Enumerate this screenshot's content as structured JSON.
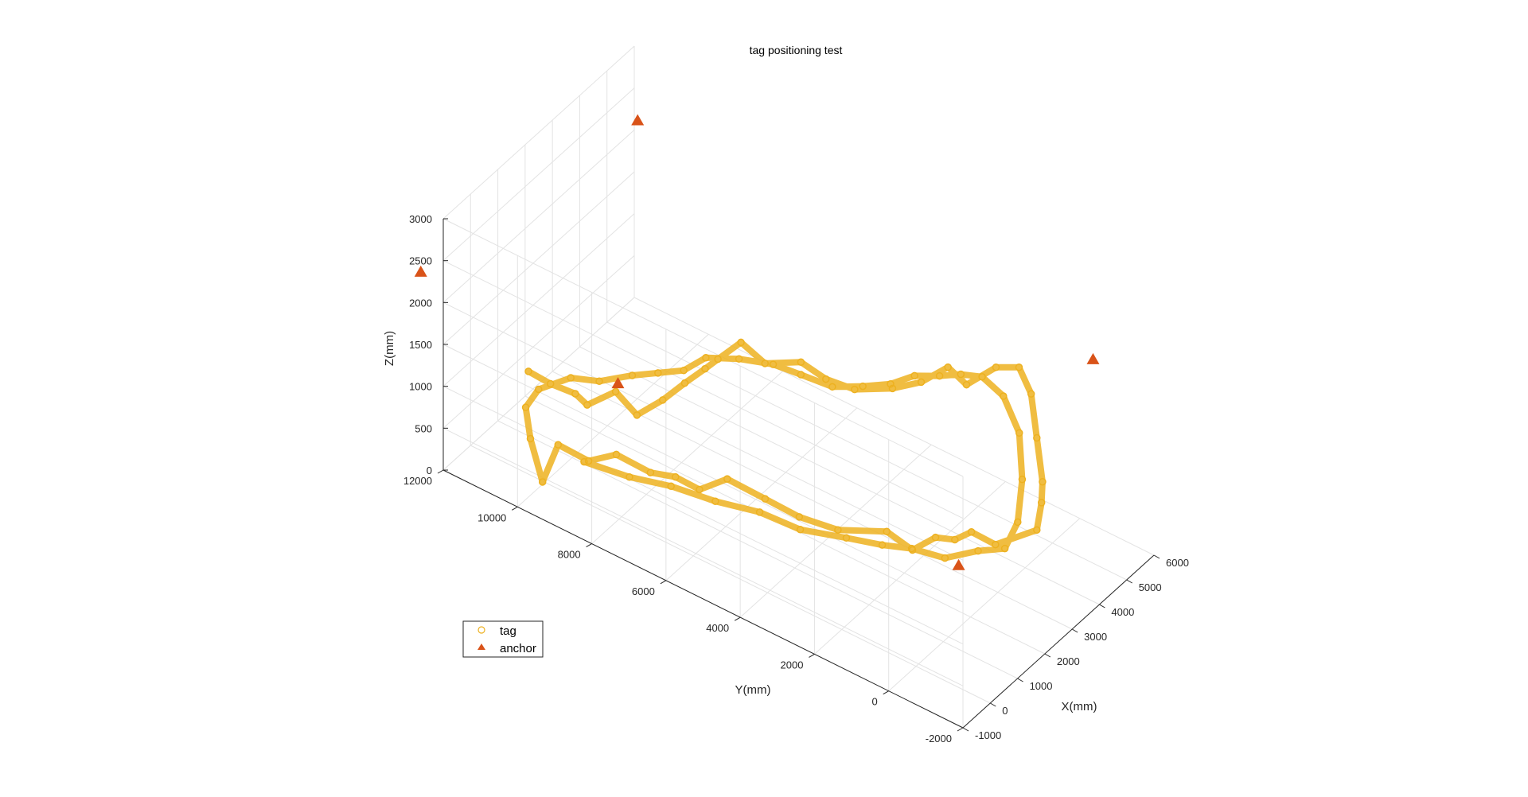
{
  "chart_data": {
    "type": "scatter",
    "title": "tag positioning test",
    "xlabel": "X(mm)",
    "ylabel": "Y(mm)",
    "zlabel": "Z(mm)",
    "xlim": [
      -1000,
      6000
    ],
    "ylim": [
      -2000,
      12000
    ],
    "zlim": [
      0,
      3000
    ],
    "xticks": [
      "-1000",
      "0",
      "1000",
      "2000",
      "3000",
      "4000",
      "5000",
      "6000"
    ],
    "yticks": [
      "-2000",
      "0",
      "2000",
      "4000",
      "6000",
      "8000",
      "10000",
      "12000"
    ],
    "zticks": [
      "0",
      "500",
      "1000",
      "1500",
      "2000",
      "2500",
      "3000"
    ],
    "grid": true,
    "view": "3d",
    "legend": {
      "placement": "bottom-left",
      "entries": [
        "tag",
        "anchor"
      ]
    },
    "colors": {
      "tag": "#EDB120",
      "anchor": "#D95319",
      "grid": "#e3e3e3",
      "axis": "#262626"
    },
    "series": [
      {
        "name": "tag",
        "marker": "circle",
        "points": [
          [
            -600,
            10000,
            1500
          ],
          [
            -200,
            9700,
            1300
          ],
          [
            300,
            9400,
            1100
          ],
          [
            600,
            9300,
            900
          ],
          [
            1100,
            8900,
            1000
          ],
          [
            1200,
            8400,
            800
          ],
          [
            1600,
            8000,
            950
          ],
          [
            2000,
            7700,
            1100
          ],
          [
            2200,
            7300,
            1300
          ],
          [
            2400,
            7100,
            1400
          ],
          [
            2700,
            6700,
            1600
          ],
          [
            2900,
            6200,
            1400
          ],
          [
            3400,
            5600,
            1400
          ],
          [
            3500,
            5000,
            1300
          ],
          [
            3600,
            4300,
            1300
          ],
          [
            3900,
            3500,
            1400
          ],
          [
            4000,
            2800,
            1600
          ],
          [
            4300,
            2300,
            1800
          ],
          [
            4300,
            1800,
            1700
          ],
          [
            4700,
            1300,
            1900
          ],
          [
            5000,
            900,
            1900
          ],
          [
            4900,
            500,
            1700
          ],
          [
            4700,
            200,
            1300
          ],
          [
            4500,
            -100,
            900
          ],
          [
            4600,
            0,
            600
          ],
          [
            4700,
            200,
            200
          ],
          [
            4000,
            800,
            100
          ],
          [
            3800,
            1300,
            200
          ],
          [
            3600,
            1600,
            100
          ],
          [
            3300,
            1900,
            150
          ],
          [
            3000,
            2300,
            0
          ],
          [
            2600,
            2700,
            250
          ],
          [
            1900,
            3500,
            300
          ],
          [
            1300,
            4100,
            500
          ],
          [
            1000,
            4800,
            650
          ],
          [
            700,
            5600,
            800
          ],
          [
            500,
            6200,
            600
          ],
          [
            300,
            6700,
            700
          ],
          [
            200,
            7300,
            650
          ],
          [
            -100,
            8000,
            800
          ],
          [
            -300,
            8600,
            650
          ],
          [
            -600,
            9200,
            800
          ],
          [
            -900,
            9400,
            400
          ],
          [
            -800,
            9800,
            800
          ],
          [
            -700,
            10000,
            1100
          ],
          [
            -500,
            9800,
            1300
          ],
          [
            0,
            9300,
            1400
          ],
          [
            500,
            8900,
            1300
          ],
          [
            1300,
            8600,
            1200
          ],
          [
            1700,
            8200,
            1200
          ],
          [
            2100,
            7800,
            1200
          ],
          [
            2500,
            7500,
            1300
          ],
          [
            2900,
            6900,
            1300
          ],
          [
            3200,
            6200,
            1300
          ],
          [
            3400,
            5600,
            1250
          ],
          [
            3600,
            4900,
            1200
          ],
          [
            3900,
            4300,
            1250
          ],
          [
            4100,
            3700,
            1350
          ],
          [
            4300,
            3200,
            1500
          ],
          [
            4400,
            2600,
            1600
          ],
          [
            4500,
            2100,
            1700
          ],
          [
            4600,
            1600,
            1750
          ],
          [
            4700,
            1100,
            1600
          ],
          [
            4600,
            600,
            1300
          ],
          [
            4300,
            300,
            900
          ],
          [
            4000,
            200,
            500
          ],
          [
            3800,
            400,
            200
          ],
          [
            3500,
            900,
            150
          ],
          [
            3100,
            1500,
            50
          ],
          [
            2700,
            2100,
            150
          ],
          [
            2300,
            2600,
            200
          ],
          [
            1800,
            3200,
            300
          ],
          [
            1200,
            4000,
            400
          ],
          [
            800,
            4800,
            550
          ],
          [
            400,
            5700,
            600
          ],
          [
            0,
            6600,
            700
          ],
          [
            -300,
            7500,
            700
          ],
          [
            -600,
            8500,
            750
          ]
        ]
      },
      {
        "name": "anchor",
        "marker": "triangle",
        "points": [
          [
            -750,
            -1700,
            1800
          ],
          [
            -600,
            12900,
            2050
          ],
          [
            5400,
            -800,
            2250
          ],
          [
            5850,
            11800,
            2200
          ],
          [
            2000,
            9500,
            700
          ]
        ]
      }
    ]
  }
}
